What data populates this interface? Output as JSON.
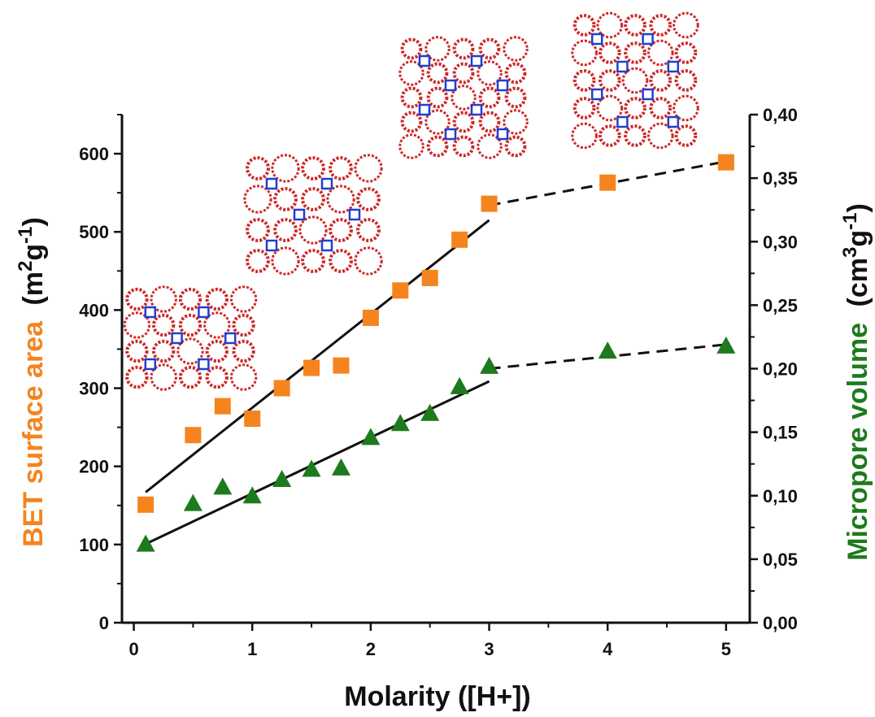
{
  "chart_data": {
    "type": "scatter",
    "xlabel": "Molarity ([H+])",
    "ylabel_left": {
      "main": "BET surface area",
      "unit_pre": "(m",
      "sup1": "2",
      "unit_mid": "g",
      "sup2": "-1",
      "unit_post": ")"
    },
    "ylabel_right": {
      "main": "Micropore volume",
      "unit_pre": "(cm",
      "sup1": "3",
      "unit_mid": "g",
      "sup2": "-1",
      "unit_post": ")"
    },
    "xlim": [
      -0.1,
      5.2
    ],
    "ylim_left": [
      0,
      650
    ],
    "ylim_right": [
      0,
      0.4
    ],
    "xticks": [
      0,
      1,
      2,
      3,
      4,
      5
    ],
    "yticks_left": [
      0,
      100,
      200,
      300,
      400,
      500,
      600
    ],
    "yticks_right": [
      "0,00",
      "0,05",
      "0,10",
      "0,15",
      "0,20",
      "0,25",
      "0,30",
      "0,35",
      "0,40"
    ],
    "series": [
      {
        "axis": "left",
        "marker": "square",
        "color": "#f5841f",
        "x": [
          0.1,
          0.5,
          0.75,
          1.0,
          1.25,
          1.5,
          1.75,
          2.0,
          2.25,
          2.5,
          2.75,
          3.0,
          4.0,
          5.0
        ],
        "y": [
          151,
          240,
          277,
          261,
          300,
          326,
          329,
          390,
          425,
          441,
          490,
          536,
          563,
          589
        ]
      },
      {
        "axis": "right",
        "marker": "triangle",
        "color": "#1d7a1d",
        "x": [
          0.1,
          0.5,
          0.75,
          1.0,
          1.25,
          1.5,
          1.75,
          2.0,
          2.25,
          2.5,
          2.75,
          3.0,
          4.0,
          5.0
        ],
        "y": [
          0.062,
          0.094,
          0.107,
          0.1,
          0.113,
          0.121,
          0.122,
          0.146,
          0.157,
          0.165,
          0.186,
          0.202,
          0.214,
          0.218
        ]
      }
    ],
    "fit_lines": [
      {
        "axis": "left",
        "style": "solid",
        "x": [
          0.1,
          3.0
        ],
        "y": [
          167,
          515
        ]
      },
      {
        "axis": "left",
        "style": "dashed",
        "x": [
          3.0,
          5.0
        ],
        "y": [
          534,
          590
        ]
      },
      {
        "axis": "right",
        "style": "solid",
        "x": [
          0.1,
          3.0
        ],
        "y": [
          0.062,
          0.19
        ]
      },
      {
        "axis": "right",
        "style": "dashed",
        "x": [
          3.0,
          5.0
        ],
        "y": [
          0.2,
          0.219
        ]
      }
    ],
    "colors": {
      "left_title": "#f5841f",
      "right_title": "#1d7a1d",
      "framework_red": "#cc2a2a",
      "framework_blue": "#1f3fd0"
    }
  }
}
